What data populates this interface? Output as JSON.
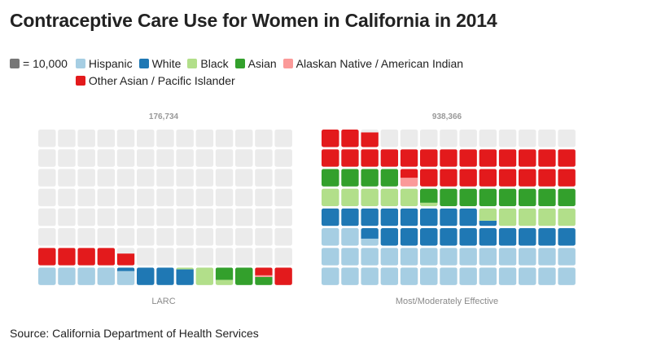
{
  "title": "Contraceptive Care Use for Women in California in 2014",
  "unit_label": "= 10,000",
  "unit_color": "#777777",
  "source": "Source: California Department of Health Services",
  "chart_data": [
    {
      "type": "waffle",
      "title": "176,734",
      "xlabel": "LARC",
      "unit": 10000,
      "grid_rows": 8,
      "grid_cols": 13,
      "fill_order": "bottom-left, left-to-right, row by row",
      "empty_color": "#ebebeb",
      "series": [
        {
          "name": "Hispanic",
          "value": 48000,
          "color": "#a6cee3"
        },
        {
          "name": "White",
          "value": 31000,
          "color": "#1f78b4"
        },
        {
          "name": "Black",
          "value": 14000,
          "color": "#b2df8a"
        },
        {
          "name": "Asian",
          "value": 21600,
          "color": "#33a02c"
        },
        {
          "name": "Alaskan Native / American Indian",
          "value": 1000,
          "color": "#fb9a99"
        },
        {
          "name": "Other Asian / Pacific Islander",
          "value": 61134,
          "color": "#e31a1c"
        }
      ]
    },
    {
      "type": "waffle",
      "title": "938,366",
      "xlabel": "Most/Moderately Effective",
      "unit": 10000,
      "grid_rows": 8,
      "grid_cols": 13,
      "fill_order": "bottom-left, left-to-right, row by row",
      "empty_color": "#ebebeb",
      "series": [
        {
          "name": "Hispanic",
          "value": 284000,
          "color": "#a6cee3"
        },
        {
          "name": "White",
          "value": 189000,
          "color": "#1f78b4"
        },
        {
          "name": "Black",
          "value": 99000,
          "color": "#b2df8a"
        },
        {
          "name": "Asian",
          "value": 118000,
          "color": "#33a02c"
        },
        {
          "name": "Alaskan Native / American Indian",
          "value": 5000,
          "color": "#fb9a99"
        },
        {
          "name": "Other Asian / Pacific Islander",
          "value": 243366,
          "color": "#e31a1c"
        }
      ]
    }
  ]
}
